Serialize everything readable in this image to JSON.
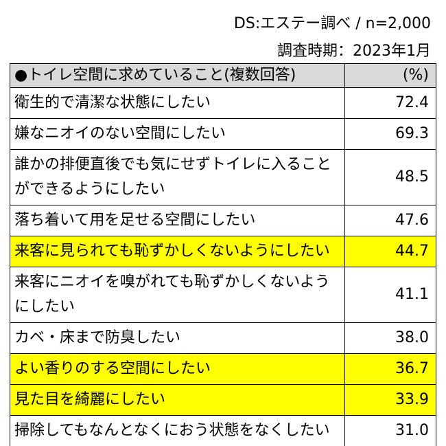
{
  "header": {
    "source": "DS:エステー調べ / n=2,000",
    "period": "調査時期：2023年1月"
  },
  "table": {
    "columns": [
      "●トイレ空間に求めていること(複数回答)",
      "(%)"
    ],
    "rows": [
      {
        "label": "衛生的で清潔な状態にしたい",
        "value": "72.4",
        "highlight": false
      },
      {
        "label": "嫌なニオイのない空間にしたい",
        "value": "69.3",
        "highlight": false
      },
      {
        "label": "誰かの排便直後でも気にせずトイレに入ることができるようにしたい",
        "value": "48.5",
        "highlight": false
      },
      {
        "label": "落ち着いて用を足せる空間にしたい",
        "value": "47.6",
        "highlight": false
      },
      {
        "label": "来客に見られても恥ずかしくないようにしたい",
        "value": "44.7",
        "highlight": true
      },
      {
        "label": "来客にニオイを嗅がれても恥ずかしくないようにしたい",
        "value": "41.1",
        "highlight": false
      },
      {
        "label": "カベ・床まで防臭したい",
        "value": "38.0",
        "highlight": false
      },
      {
        "label": "よい香りのする空間にしたい",
        "value": "36.7",
        "highlight": true
      },
      {
        "label": "見た目を綺麗にしたい",
        "value": "33.9",
        "highlight": true
      },
      {
        "label": "掃除してもなんとなくにおう状態をなくしたい",
        "value": "31.0",
        "highlight": false
      }
    ]
  }
}
